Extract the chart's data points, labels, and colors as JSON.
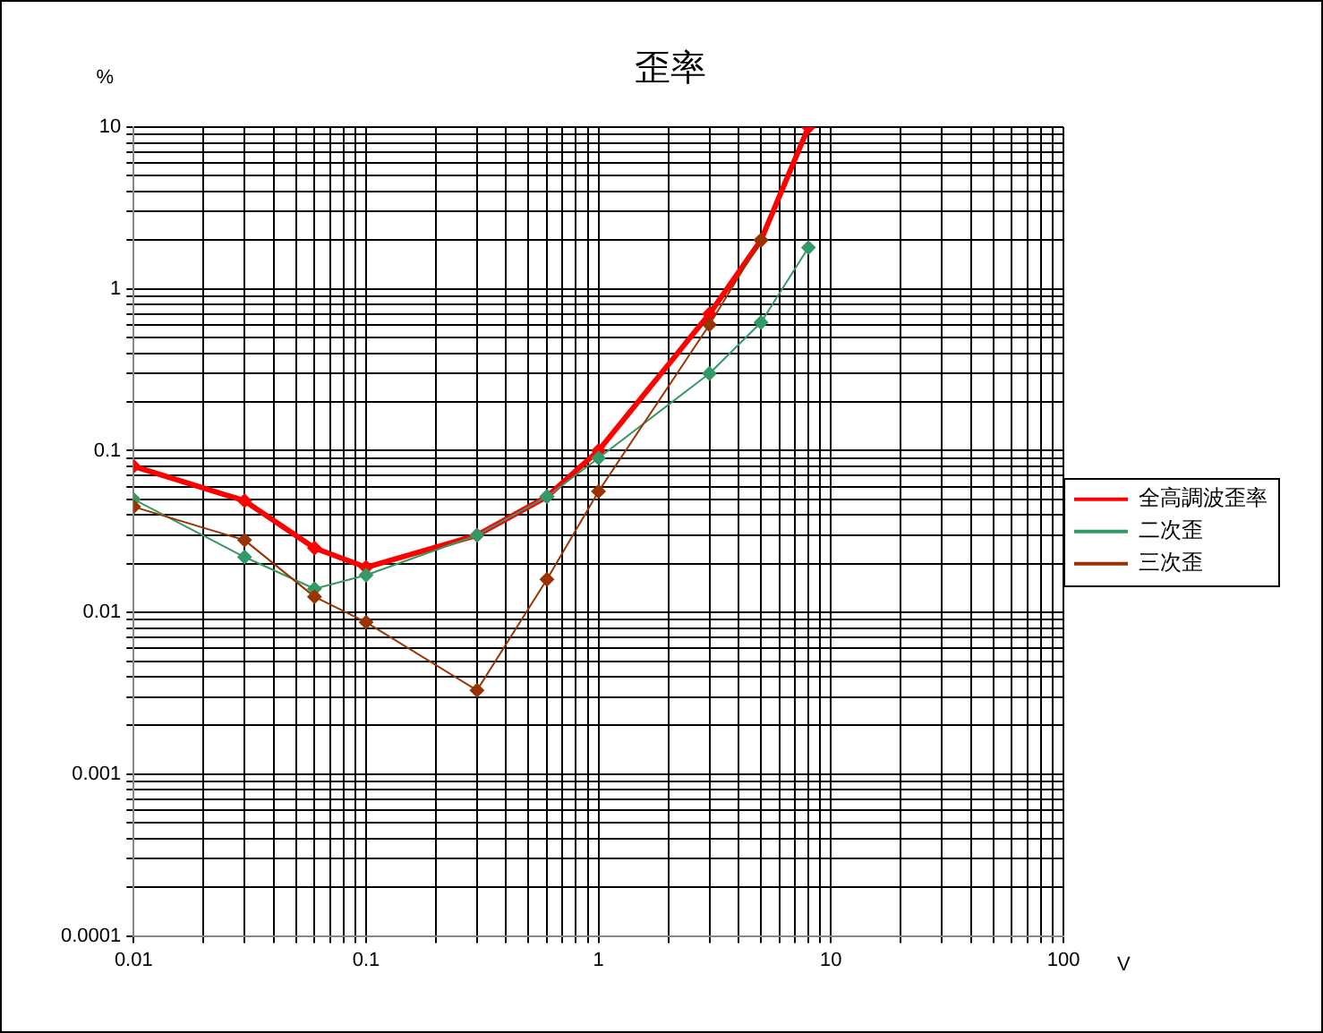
{
  "chart_data": {
    "type": "line",
    "title": "歪率",
    "xlabel": "V",
    "ylabel": "%",
    "log": "xy",
    "grid": true,
    "legend": "right",
    "marker": "diamond",
    "line_style": "solid",
    "x": [
      0.01,
      0.03,
      0.06,
      0.1,
      0.3,
      0.6,
      1,
      3,
      5,
      8
    ],
    "xlim": [
      0.01,
      100
    ],
    "xticks": [
      0.01,
      0.1,
      1,
      10,
      100
    ],
    "ylim": [
      0.0001,
      10
    ],
    "yticks": [
      0.0001,
      0.001,
      0.01,
      0.1,
      1,
      10
    ],
    "series": [
      {
        "name": "全高調波歪率",
        "color": "#ff0000",
        "values": [
          0.08,
          0.049,
          0.025,
          0.019,
          0.03,
          0.052,
          0.1,
          0.7,
          2.0,
          10
        ]
      },
      {
        "name": "二次歪",
        "color": "#339966",
        "values": [
          0.05,
          0.022,
          0.014,
          0.017,
          0.03,
          0.052,
          0.09,
          0.3,
          0.62,
          1.8
        ]
      },
      {
        "name": "三次歪",
        "color": "#993300",
        "values": [
          0.045,
          0.028,
          0.0125,
          0.0087,
          0.0033,
          0.016,
          0.056,
          0.6,
          2.0,
          null
        ]
      }
    ]
  }
}
